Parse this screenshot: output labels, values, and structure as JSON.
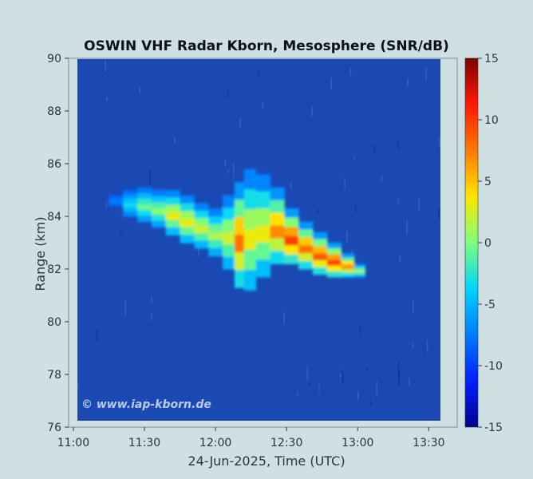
{
  "chart_data": {
    "type": "heatmap",
    "title": "OSWIN VHF Radar Kborn, Mesosphere (SNR/dB)",
    "xlabel": "24-Jun-2025, Time (UTC)",
    "ylabel": "Range (km)",
    "x_ticks": [
      "11:00",
      "11:30",
      "12:00",
      "12:30",
      "13:00",
      "13:30"
    ],
    "x_tick_values_min": [
      660,
      690,
      720,
      750,
      780,
      810
    ],
    "xlim_min": [
      658,
      822
    ],
    "y_ticks": [
      "76",
      "78",
      "80",
      "82",
      "84",
      "86",
      "88",
      "90"
    ],
    "ylim": [
      76,
      90
    ],
    "colorbar": {
      "ticks": [
        "-15",
        "-10",
        "-5",
        "0",
        "5",
        "10",
        "15"
      ],
      "range": [
        -15,
        15
      ]
    },
    "background_snr_db": -15,
    "echo_layer": [
      {
        "time_min": 678,
        "lower_km": 84.4,
        "upper_km": 84.8,
        "peak_snr_db": -7
      },
      {
        "time_min": 684,
        "lower_km": 84.0,
        "upper_km": 85.0,
        "peak_snr_db": -3
      },
      {
        "time_min": 690,
        "lower_km": 83.8,
        "upper_km": 85.1,
        "peak_snr_db": 0
      },
      {
        "time_min": 696,
        "lower_km": 83.6,
        "upper_km": 85.0,
        "peak_snr_db": 1
      },
      {
        "time_min": 702,
        "lower_km": 83.3,
        "upper_km": 85.0,
        "peak_snr_db": 4
      },
      {
        "time_min": 708,
        "lower_km": 83.0,
        "upper_km": 84.8,
        "peak_snr_db": 4
      },
      {
        "time_min": 714,
        "lower_km": 82.8,
        "upper_km": 84.5,
        "peak_snr_db": 3
      },
      {
        "time_min": 720,
        "lower_km": 82.5,
        "upper_km": 84.3,
        "peak_snr_db": 2
      },
      {
        "time_min": 726,
        "lower_km": 82.0,
        "upper_km": 84.8,
        "peak_snr_db": 3
      },
      {
        "time_min": 730,
        "lower_km": 81.3,
        "upper_km": 85.3,
        "peak_snr_db": 9
      },
      {
        "time_min": 734,
        "lower_km": 81.2,
        "upper_km": 85.8,
        "peak_snr_db": 4
      },
      {
        "time_min": 740,
        "lower_km": 81.7,
        "upper_km": 85.6,
        "peak_snr_db": 4
      },
      {
        "time_min": 746,
        "lower_km": 82.2,
        "upper_km": 85.1,
        "peak_snr_db": 8
      },
      {
        "time_min": 752,
        "lower_km": 82.2,
        "upper_km": 84.3,
        "peak_snr_db": 11
      },
      {
        "time_min": 758,
        "lower_km": 82.0,
        "upper_km": 83.8,
        "peak_snr_db": 9
      },
      {
        "time_min": 764,
        "lower_km": 81.8,
        "upper_km": 83.4,
        "peak_snr_db": 10
      },
      {
        "time_min": 770,
        "lower_km": 81.7,
        "upper_km": 83.0,
        "peak_snr_db": 11
      },
      {
        "time_min": 776,
        "lower_km": 81.7,
        "upper_km": 82.6,
        "peak_snr_db": 8
      },
      {
        "time_min": 781,
        "lower_km": 81.7,
        "upper_km": 82.2,
        "peak_snr_db": 2
      }
    ],
    "watermark": "© www.iap-kborn.de"
  }
}
